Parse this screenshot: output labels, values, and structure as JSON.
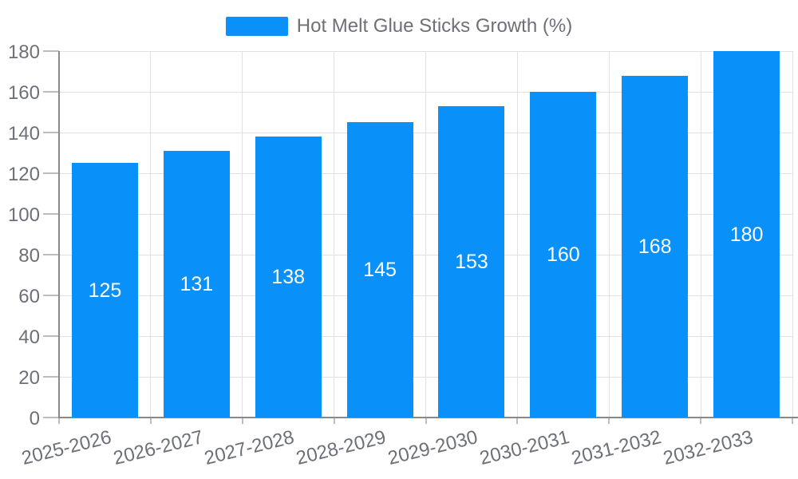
{
  "chart_data": {
    "type": "bar",
    "title": "Hot Melt Glue Sticks Growth (%)",
    "categories": [
      "2025-2026",
      "2026-2027",
      "2027-2028",
      "2028-2029",
      "2029-2030",
      "2030-2031",
      "2031-2032",
      "2032-2033"
    ],
    "values": [
      125,
      131,
      138,
      145,
      153,
      160,
      168,
      180
    ],
    "series": [
      {
        "name": "Hot Melt Glue Sticks Growth (%)",
        "values": [
          125,
          131,
          138,
          145,
          153,
          160,
          168,
          180
        ]
      }
    ],
    "xlabel": "",
    "ylabel": "",
    "ylim": [
      0,
      180
    ],
    "yticks": [
      0,
      20,
      40,
      60,
      80,
      100,
      120,
      140,
      160,
      180
    ],
    "grid": true,
    "legend_position": "top-center",
    "x_label_rotation_deg": -14,
    "bar_value_labels_inside": true,
    "colors": {
      "bar": "#0991f9",
      "bar_label_text": "#ffffff",
      "axis_text": "#6e7079",
      "legend_text": "#6e7079",
      "axis_line": "#898989",
      "tick_line": "#bdbdbd",
      "gridline": "#e0e0e6",
      "background": "#ffffff"
    }
  }
}
